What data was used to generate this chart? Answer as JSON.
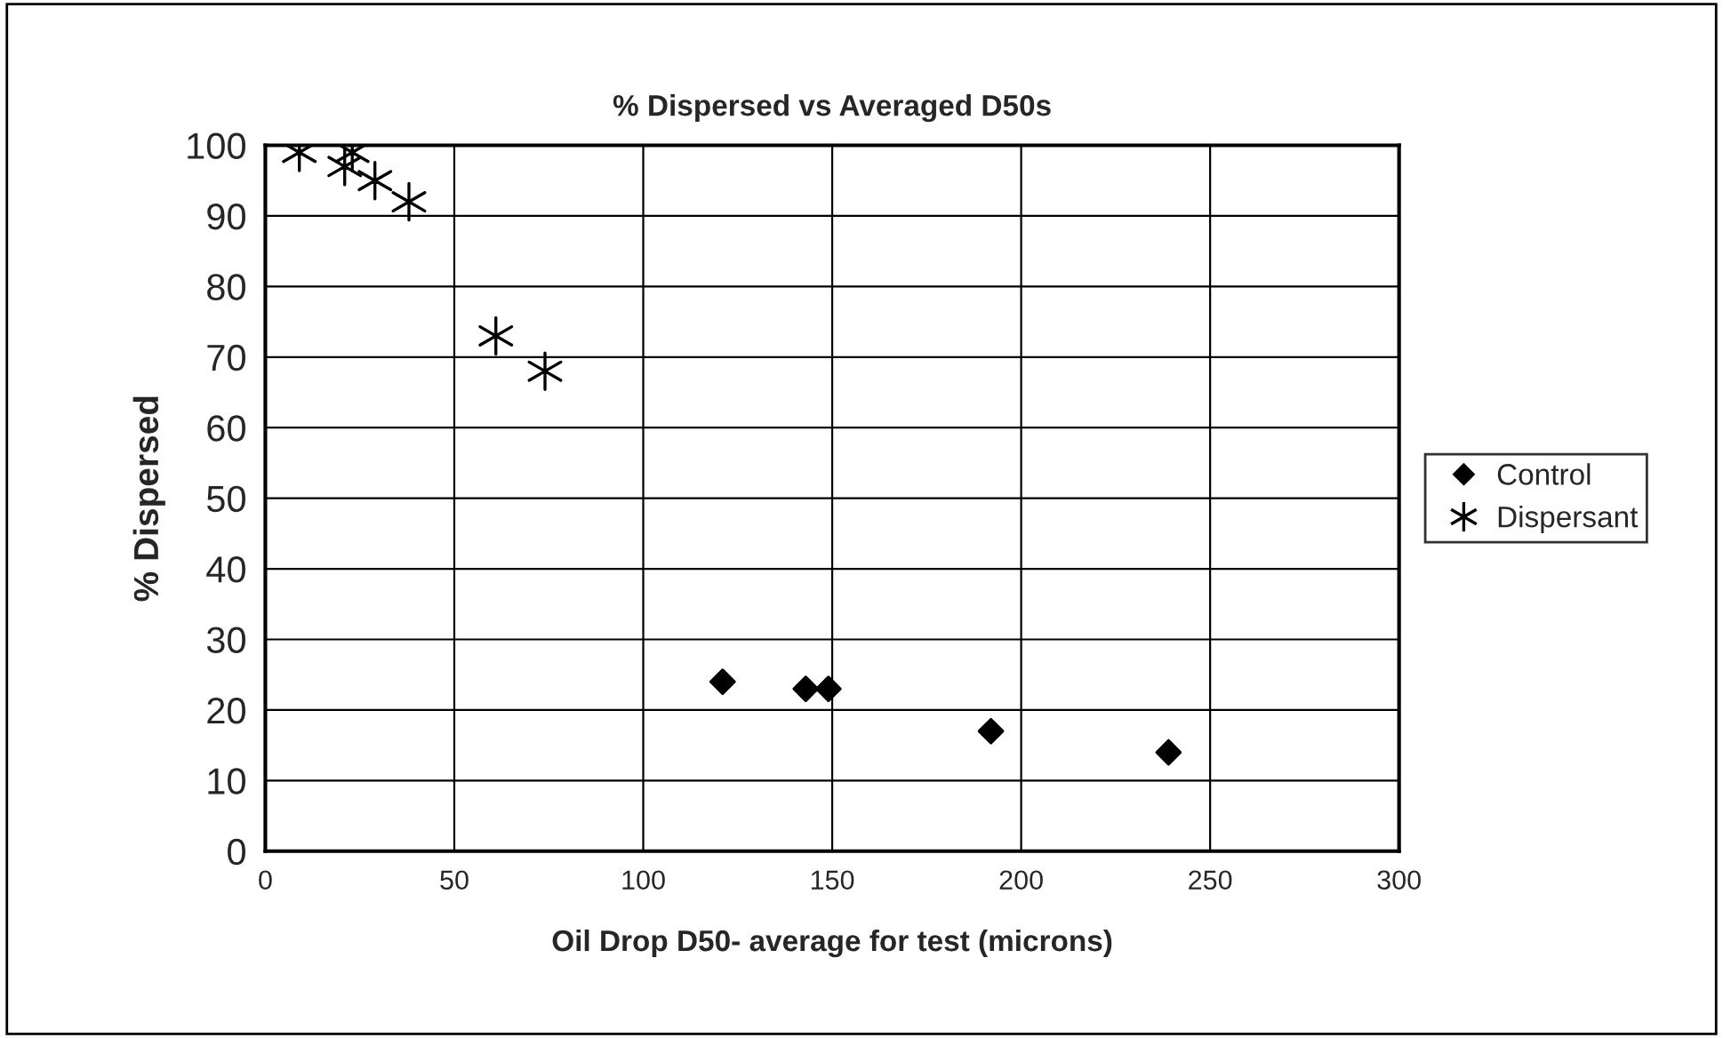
{
  "chart_data": {
    "type": "scatter",
    "title": "% Dispersed vs Averaged D50s",
    "xlabel": "Oil Drop D50- average for test (microns)",
    "ylabel": "% Dispersed",
    "xlim": [
      0,
      300
    ],
    "xticks": [
      0,
      50,
      100,
      150,
      200,
      250,
      300
    ],
    "ylim": [
      0,
      100
    ],
    "yticks": [
      0,
      10,
      20,
      30,
      40,
      50,
      60,
      70,
      80,
      90,
      100
    ],
    "grid": true,
    "legend": "right",
    "series": [
      {
        "name": "Control",
        "color": "#000000",
        "marker": "diamond",
        "x": [
          121,
          143,
          149,
          192,
          239
        ],
        "values": [
          24,
          23,
          23,
          17,
          14
        ]
      },
      {
        "name": "Dispersant",
        "color": "#000000",
        "marker": "cross",
        "x": [
          9,
          21,
          23,
          29,
          38,
          61,
          74
        ],
        "values": [
          99,
          97,
          99,
          95,
          92,
          73,
          68
        ]
      }
    ]
  }
}
